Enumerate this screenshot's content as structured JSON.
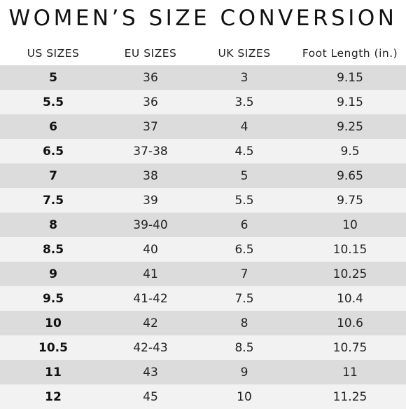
{
  "title": "WOMEN’S SIZE CONVERSION",
  "table": {
    "headers": [
      "US SIZES",
      "EU SIZES",
      "UK SIZES",
      "Foot Length (in.)"
    ],
    "rows": [
      [
        "5",
        "36",
        "3",
        "9.15"
      ],
      [
        "5.5",
        "36",
        "3.5",
        "9.15"
      ],
      [
        "6",
        "37",
        "4",
        "9.25"
      ],
      [
        "6.5",
        "37-38",
        "4.5",
        "9.5"
      ],
      [
        "7",
        "38",
        "5",
        "9.65"
      ],
      [
        "7.5",
        "39",
        "5.5",
        "9.75"
      ],
      [
        "8",
        "39-40",
        "6",
        "10"
      ],
      [
        "8.5",
        "40",
        "6.5",
        "10.15"
      ],
      [
        "9",
        "41",
        "7",
        "10.25"
      ],
      [
        "9.5",
        "41-42",
        "7.5",
        "10.4"
      ],
      [
        "10",
        "42",
        "8",
        "10.6"
      ],
      [
        "10.5",
        "42-43",
        "8.5",
        "10.75"
      ],
      [
        "11",
        "43",
        "9",
        "11"
      ],
      [
        "12",
        "45",
        "10",
        "11.25"
      ]
    ]
  },
  "colors": {
    "row_dark": "#dcdcdc",
    "row_light": "#f2f2f2",
    "text": "#222222"
  }
}
